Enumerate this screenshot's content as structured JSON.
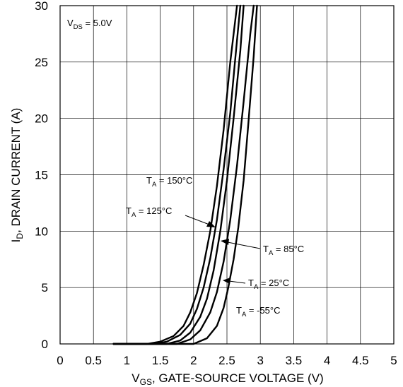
{
  "chart_data": {
    "type": "line",
    "xlabel": {
      "main": "V",
      "sub": "GS",
      "rest": ", GATE-SOURCE VOLTAGE (V)"
    },
    "ylabel": {
      "main": "I",
      "sub": "D",
      "rest": ", DRAIN CURRENT (A)"
    },
    "xlim": [
      0,
      5
    ],
    "ylim": [
      0,
      30
    ],
    "xticks": [
      "0",
      "0.5",
      "1",
      "1.5",
      "2",
      "2.5",
      "3",
      "3.5",
      "4",
      "4.5",
      "5"
    ],
    "yticks": [
      "0",
      "5",
      "10",
      "15",
      "20",
      "25",
      "30"
    ],
    "grid": true,
    "condition": {
      "main": "V",
      "sub": "DS",
      "rest": " = 5.0V"
    },
    "series": [
      {
        "name": "T_A = 150°C",
        "x": [
          0.8,
          1.3,
          1.5,
          1.7,
          1.85,
          1.95,
          2.05,
          2.15,
          2.25,
          2.35,
          2.45,
          2.55,
          2.65
        ],
        "y": [
          0,
          0,
          0.2,
          0.7,
          1.6,
          2.8,
          4.5,
          7,
          10,
          14,
          19,
          25,
          30
        ]
      },
      {
        "name": "T_A = 125°C",
        "x": [
          0.8,
          1.4,
          1.6,
          1.8,
          1.95,
          2.05,
          2.15,
          2.25,
          2.35,
          2.45,
          2.55,
          2.62,
          2.7
        ],
        "y": [
          0,
          0,
          0.2,
          0.8,
          1.8,
          3.1,
          5,
          7.6,
          11,
          15.5,
          20.5,
          25,
          30
        ]
      },
      {
        "name": "T_A = 85°C",
        "x": [
          0.8,
          1.6,
          1.8,
          1.95,
          2.1,
          2.2,
          2.3,
          2.4,
          2.5,
          2.6,
          2.7,
          2.75
        ],
        "y": [
          0,
          0,
          0.3,
          1.0,
          2.4,
          4,
          6.5,
          10,
          14.5,
          20,
          26,
          30
        ]
      },
      {
        "name": "T_A = 25°C",
        "x": [
          0.8,
          1.75,
          1.95,
          2.1,
          2.25,
          2.35,
          2.45,
          2.55,
          2.65,
          2.75,
          2.85,
          2.9
        ],
        "y": [
          0,
          0,
          0.4,
          1.2,
          2.8,
          4.6,
          7.3,
          11,
          15.8,
          21.5,
          27.5,
          30
        ]
      },
      {
        "name": "T_A = -55°C",
        "x": [
          0.8,
          2.0,
          2.2,
          2.35,
          2.45,
          2.52,
          2.6,
          2.67,
          2.75,
          2.82,
          2.9,
          2.95
        ],
        "y": [
          0,
          0,
          0.5,
          1.6,
          3.2,
          5,
          7.5,
          10.3,
          14.5,
          19.5,
          25.5,
          30
        ]
      }
    ],
    "labels": [
      {
        "t": "T",
        "s": "A",
        "r": " = 150°C"
      },
      {
        "t": "T",
        "s": "A",
        "r": " = 125°C"
      },
      {
        "t": "T",
        "s": "A",
        "r": " = 85°C"
      },
      {
        "t": "T",
        "s": "A",
        "r": " = 25°C"
      },
      {
        "t": "T",
        "s": "A",
        "r": " = -55°C"
      }
    ]
  }
}
